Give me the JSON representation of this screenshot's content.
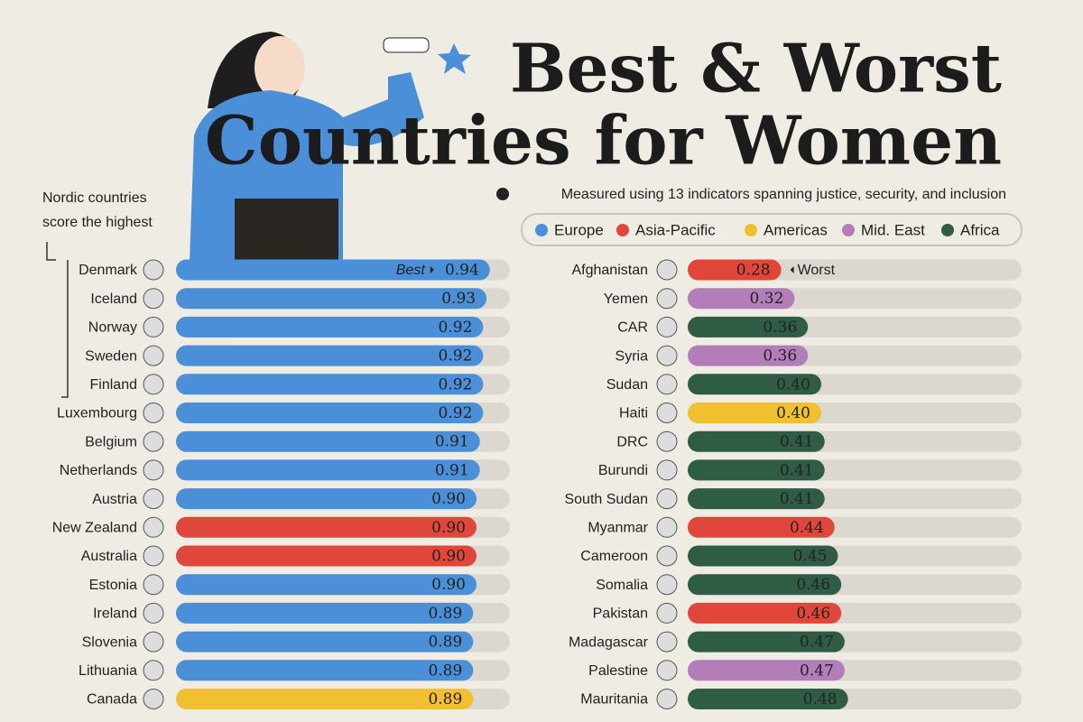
{
  "header": {
    "title_lines": [
      "Best & Worst",
      "Countries for Women"
    ],
    "subtitle": "Measured using 13 indicators spanning justice, security, and inclusion",
    "note": [
      "Nordic countries",
      "score the highest"
    ],
    "legend": [
      {
        "name": "Europe",
        "color": "#4a8fd8"
      },
      {
        "name": "Asia-Pacific",
        "color": "#e0473a"
      },
      {
        "name": "Americas",
        "color": "#f0c030"
      },
      {
        "name": "Mid. East",
        "color": "#b27db8"
      },
      {
        "name": "Africa",
        "color": "#2f5c45"
      }
    ]
  },
  "chart_data": [
    {
      "type": "bar",
      "orientation": "horizontal",
      "marker_label": "Best",
      "xlim": [
        0,
        1
      ],
      "categories": [
        "Denmark",
        "Iceland",
        "Norway",
        "Sweden",
        "Finland",
        "Luxembourg",
        "Belgium",
        "Netherlands",
        "Austria",
        "New Zealand",
        "Australia",
        "Estonia",
        "Ireland",
        "Slovenia",
        "Lithuania",
        "Canada"
      ],
      "values": [
        0.94,
        0.93,
        0.92,
        0.92,
        0.92,
        0.92,
        0.91,
        0.91,
        0.9,
        0.9,
        0.9,
        0.9,
        0.89,
        0.89,
        0.89,
        0.89
      ],
      "value_labels": [
        "0.94",
        "0.93",
        "0.92",
        "0.92",
        "0.92",
        "0.92",
        "0.91",
        "0.91",
        "0.90",
        "0.90",
        "0.90",
        "0.90",
        "0.89",
        "0.89",
        "0.89",
        "0.89"
      ],
      "colors": [
        "#4a8fd8",
        "#4a8fd8",
        "#4a8fd8",
        "#4a8fd8",
        "#4a8fd8",
        "#4a8fd8",
        "#4a8fd8",
        "#4a8fd8",
        "#4a8fd8",
        "#e0473a",
        "#e0473a",
        "#4a8fd8",
        "#4a8fd8",
        "#4a8fd8",
        "#4a8fd8",
        "#f0c030"
      ]
    },
    {
      "type": "bar",
      "orientation": "horizontal",
      "marker_label": "Worst",
      "xlim": [
        0,
        1
      ],
      "categories": [
        "Afghanistan",
        "Yemen",
        "CAR",
        "Syria",
        "Sudan",
        "Haiti",
        "DRC",
        "Burundi",
        "South Sudan",
        "Myanmar",
        "Cameroon",
        "Somalia",
        "Pakistan",
        "Madagascar",
        "Palestine",
        "Mauritania"
      ],
      "values": [
        0.28,
        0.32,
        0.36,
        0.36,
        0.4,
        0.4,
        0.41,
        0.41,
        0.41,
        0.44,
        0.45,
        0.46,
        0.46,
        0.47,
        0.47,
        0.48
      ],
      "value_labels": [
        "0.28",
        "0.32",
        "0.36",
        "0.36",
        "0.40",
        "0.40",
        "0.41",
        "0.41",
        "0.41",
        "0.44",
        "0.45",
        "0.46",
        "0.46",
        "0.47",
        "0.47",
        "0.48"
      ],
      "colors": [
        "#e0473a",
        "#b27db8",
        "#2f5c45",
        "#b27db8",
        "#2f5c45",
        "#f0c030",
        "#2f5c45",
        "#2f5c45",
        "#2f5c45",
        "#e0473a",
        "#2f5c45",
        "#2f5c45",
        "#e0473a",
        "#2f5c45",
        "#b27db8",
        "#2f5c45"
      ]
    }
  ]
}
